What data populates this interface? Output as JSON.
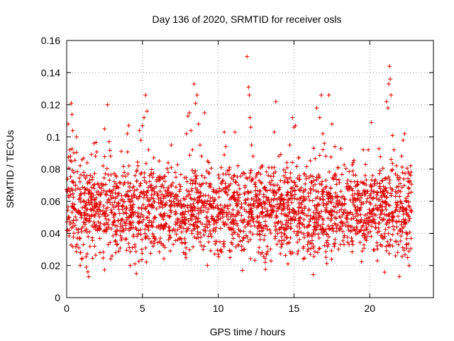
{
  "chart_data": {
    "type": "scatter",
    "title": "Day 136 of 2020, SRMTID for receiver osls",
    "xlabel": "GPS time / hours",
    "ylabel": "SRMTID / TECUs",
    "xlim": [
      0,
      24.2
    ],
    "ylim": [
      0,
      0.16
    ],
    "x_ticks": [
      0,
      5,
      10,
      15,
      20
    ],
    "x_tick_labels": [
      "0",
      "5",
      "10",
      "15",
      "20"
    ],
    "y_ticks": [
      0,
      0.02,
      0.04,
      0.06,
      0.08,
      0.1,
      0.12,
      0.14,
      0.16
    ],
    "y_tick_labels": [
      "0",
      "0.02",
      "0.04",
      "0.06",
      "0.08",
      "0.1",
      "0.12",
      "0.14",
      "0.16"
    ],
    "grid": true,
    "marker": "+",
    "series": [
      {
        "name": "SRMTID",
        "color": "#e00000",
        "points": [
          [
            0.05,
            0.066
          ],
          [
            0.1,
            0.108
          ],
          [
            0.2,
            0.092
          ],
          [
            0.25,
            0.088
          ],
          [
            0.3,
            0.121
          ],
          [
            0.35,
            0.114
          ],
          [
            0.4,
            0.104
          ],
          [
            0.45,
            0.072
          ],
          [
            0.5,
            0.058
          ],
          [
            0.55,
            0.045
          ],
          [
            0.65,
            0.1
          ],
          [
            0.7,
            0.037
          ],
          [
            0.8,
            0.031
          ],
          [
            0.9,
            0.028
          ],
          [
            1.0,
            0.024
          ],
          [
            1.1,
            0.033
          ],
          [
            1.2,
            0.052
          ],
          [
            1.3,
            0.019
          ],
          [
            1.4,
            0.016
          ],
          [
            1.45,
            0.013
          ],
          [
            1.5,
            0.041
          ],
          [
            1.6,
            0.062
          ],
          [
            1.7,
            0.075
          ],
          [
            1.8,
            0.096
          ],
          [
            1.9,
            0.088
          ],
          [
            2.0,
            0.058
          ],
          [
            2.1,
            0.043
          ],
          [
            2.2,
            0.028
          ],
          [
            2.3,
            0.071
          ],
          [
            2.4,
            0.082
          ],
          [
            2.5,
            0.105
          ],
          [
            2.6,
            0.054
          ],
          [
            2.7,
            0.12
          ],
          [
            2.8,
            0.097
          ],
          [
            2.9,
            0.088
          ],
          [
            3.0,
            0.065
          ],
          [
            3.1,
            0.047
          ],
          [
            3.2,
            0.035
          ],
          [
            3.4,
            0.059
          ],
          [
            3.6,
            0.091
          ],
          [
            3.8,
            0.078
          ],
          [
            4.0,
            0.102
          ],
          [
            4.1,
            0.107
          ],
          [
            4.2,
            0.071
          ],
          [
            4.3,
            0.053
          ],
          [
            4.4,
            0.038
          ],
          [
            4.5,
            0.021
          ],
          [
            4.6,
            0.015
          ],
          [
            4.7,
            0.082
          ],
          [
            4.8,
            0.104
          ],
          [
            4.9,
            0.098
          ],
          [
            5.0,
            0.107
          ],
          [
            5.1,
            0.112
          ],
          [
            5.2,
            0.126
          ],
          [
            5.3,
            0.116
          ],
          [
            5.4,
            0.092
          ],
          [
            5.5,
            0.061
          ],
          [
            5.6,
            0.047
          ],
          [
            5.7,
            0.032
          ],
          [
            5.9,
            0.069
          ],
          [
            6.1,
            0.085
          ],
          [
            6.3,
            0.058
          ],
          [
            6.5,
            0.044
          ],
          [
            6.7,
            0.078
          ],
          [
            6.9,
            0.095
          ],
          [
            7.1,
            0.063
          ],
          [
            7.3,
            0.049
          ],
          [
            7.5,
            0.037
          ],
          [
            7.7,
            0.028
          ],
          [
            7.9,
            0.102
          ],
          [
            8.0,
            0.113
          ],
          [
            8.1,
            0.115
          ],
          [
            8.2,
            0.104
          ],
          [
            8.3,
            0.092
          ],
          [
            8.4,
            0.133
          ],
          [
            8.5,
            0.121
          ],
          [
            8.6,
            0.126
          ],
          [
            8.7,
            0.108
          ],
          [
            8.8,
            0.095
          ],
          [
            8.9,
            0.088
          ],
          [
            9.0,
            0.071
          ],
          [
            9.1,
            0.115
          ],
          [
            9.3,
            0.085
          ],
          [
            9.5,
            0.062
          ],
          [
            9.7,
            0.048
          ],
          [
            9.9,
            0.035
          ],
          [
            10.0,
            0.027
          ],
          [
            10.2,
            0.081
          ],
          [
            10.4,
            0.103
          ],
          [
            10.5,
            0.094
          ],
          [
            10.7,
            0.067
          ],
          [
            10.9,
            0.052
          ],
          [
            11.1,
            0.103
          ],
          [
            11.3,
            0.082
          ],
          [
            11.5,
            0.048
          ],
          [
            11.6,
            0.017
          ],
          [
            11.7,
            0.037
          ],
          [
            11.8,
            0.059
          ],
          [
            11.9,
            0.15
          ],
          [
            12.0,
            0.131
          ],
          [
            12.05,
            0.126
          ],
          [
            12.1,
            0.112
          ],
          [
            12.15,
            0.106
          ],
          [
            12.2,
            0.095
          ],
          [
            12.3,
            0.088
          ],
          [
            12.5,
            0.063
          ],
          [
            12.7,
            0.045
          ],
          [
            12.9,
            0.028
          ],
          [
            13.1,
            0.022
          ],
          [
            13.3,
            0.076
          ],
          [
            13.5,
            0.054
          ],
          [
            13.7,
            0.103
          ],
          [
            13.8,
            0.122
          ],
          [
            14.0,
            0.088
          ],
          [
            14.2,
            0.061
          ],
          [
            14.4,
            0.039
          ],
          [
            14.6,
            0.021
          ],
          [
            14.8,
            0.068
          ],
          [
            14.9,
            0.112
          ],
          [
            15.0,
            0.106
          ],
          [
            15.1,
            0.107
          ],
          [
            15.3,
            0.087
          ],
          [
            15.5,
            0.058
          ],
          [
            15.7,
            0.044
          ],
          [
            15.9,
            0.029
          ],
          [
            16.1,
            0.076
          ],
          [
            16.3,
            0.093
          ],
          [
            16.5,
            0.118
          ],
          [
            16.7,
            0.112
          ],
          [
            16.8,
            0.126
          ],
          [
            16.9,
            0.102
          ],
          [
            17.0,
            0.096
          ],
          [
            17.1,
            0.088
          ],
          [
            17.3,
            0.126
          ],
          [
            17.5,
            0.108
          ],
          [
            17.7,
            0.094
          ],
          [
            17.9,
            0.081
          ],
          [
            18.1,
            0.058
          ],
          [
            18.3,
            0.033
          ],
          [
            18.5,
            0.047
          ],
          [
            18.7,
            0.069
          ],
          [
            18.9,
            0.084
          ],
          [
            19.1,
            0.054
          ],
          [
            19.3,
            0.041
          ],
          [
            19.5,
            0.029
          ],
          [
            19.7,
            0.076
          ],
          [
            19.9,
            0.092
          ],
          [
            20.1,
            0.109
          ],
          [
            20.3,
            0.071
          ],
          [
            20.5,
            0.023
          ],
          [
            20.7,
            0.052
          ],
          [
            20.9,
            0.066
          ],
          [
            21.0,
            0.038
          ],
          [
            21.1,
            0.122
          ],
          [
            21.2,
            0.118
          ],
          [
            21.25,
            0.133
          ],
          [
            21.3,
            0.144
          ],
          [
            21.35,
            0.136
          ],
          [
            21.4,
            0.126
          ],
          [
            21.5,
            0.101
          ],
          [
            21.6,
            0.092
          ],
          [
            21.7,
            0.063
          ],
          [
            21.8,
            0.047
          ],
          [
            21.9,
            0.033
          ],
          [
            22.0,
            0.071
          ],
          [
            22.1,
            0.088
          ],
          [
            22.2,
            0.098
          ],
          [
            22.3,
            0.102
          ],
          [
            22.4,
            0.055
          ],
          [
            22.5,
            0.025
          ],
          [
            22.6,
            0.02
          ],
          [
            22.7,
            0.082
          ]
        ]
      }
    ]
  }
}
